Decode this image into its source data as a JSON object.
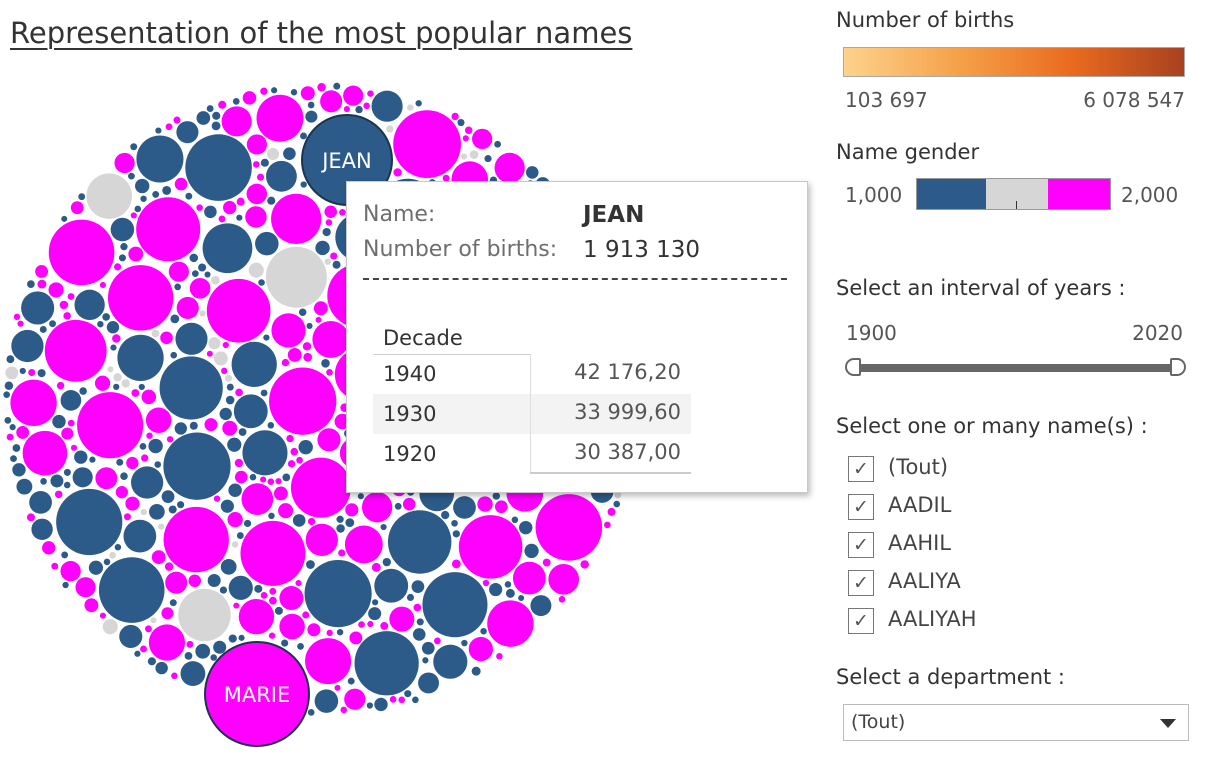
{
  "header": {
    "title": "Representation of the most popular names"
  },
  "bubbles": {
    "colors": {
      "male": "#2d5b89",
      "female": "#ff00ff",
      "neutral": "#d6d6d6"
    },
    "labels": [
      {
        "name": "JEAN",
        "gender": "male"
      },
      {
        "name": "MARIE",
        "gender": "female"
      }
    ]
  },
  "tooltip": {
    "name_label": "Name:",
    "name_value": "JEAN",
    "births_label": "Number of births:",
    "births_value": "1 913 130",
    "separator": "---------------------------------------------------",
    "table_header": "Decade",
    "rows": [
      {
        "decade": "1940",
        "value": "42 176,20"
      },
      {
        "decade": "1930",
        "value": "33 999,60"
      },
      {
        "decade": "1920",
        "value": "30 387,00"
      }
    ]
  },
  "legend_births": {
    "title": "Number of births",
    "min": "103 697",
    "max": "6 078 547",
    "gradient": [
      "#fdd28c",
      "#f5a24a",
      "#ea6b1f",
      "#a8411f"
    ]
  },
  "legend_gender": {
    "title": "Name gender",
    "min": "1,000",
    "max": "2,000",
    "colors": [
      "#2d5b89",
      "#d6d6d6",
      "#ff00ff"
    ]
  },
  "years_filter": {
    "label": "Select an interval of years :",
    "start": "1900",
    "end": "2020"
  },
  "names_filter": {
    "label": "Select one or many name(s) :",
    "items": [
      {
        "label": "(Tout)",
        "checked": true
      },
      {
        "label": "AADIL",
        "checked": true
      },
      {
        "label": "AAHIL",
        "checked": true
      },
      {
        "label": "AALIYA",
        "checked": true
      },
      {
        "label": "AALIYAH",
        "checked": true
      }
    ]
  },
  "department_filter": {
    "label": "Select a department :",
    "value": "(Tout)"
  }
}
